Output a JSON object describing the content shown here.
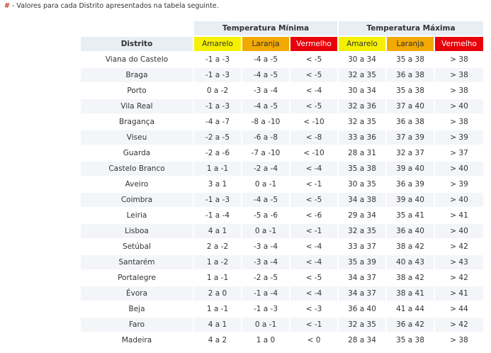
{
  "intro": {
    "marker": "#",
    "text": " - Valores para cada Distrito apresentados na tabela seguinte."
  },
  "table": {
    "groups": {
      "min": "Temperatura Mínima",
      "max": "Temperatura Máxima"
    },
    "distrito_header": "Distrito",
    "levels": [
      "Amarelo",
      "Laranja",
      "Vermelho"
    ],
    "level_colors": {
      "amarelo": "#f4f000",
      "laranja": "#f2a900",
      "vermelho": "#e8000a"
    },
    "rows": [
      {
        "distrito": "Viana do Castelo",
        "min": [
          "-1 a -3",
          "-4 a -5",
          "< -5"
        ],
        "max": [
          "30 a 34",
          "35 a 38",
          "> 38"
        ]
      },
      {
        "distrito": "Braga",
        "min": [
          "-1 a -3",
          "-4 a -5",
          "< -5"
        ],
        "max": [
          "32 a 35",
          "36 a 38",
          "> 38"
        ]
      },
      {
        "distrito": "Porto",
        "min": [
          "0 a -2",
          "-3 a -4",
          "< -4"
        ],
        "max": [
          "30 a 34",
          "35 a 38",
          "> 38"
        ]
      },
      {
        "distrito": "Vila Real",
        "min": [
          "-1 a -3",
          "-4 a -5",
          "< -5"
        ],
        "max": [
          "32 a 36",
          "37 a 40",
          "> 40"
        ]
      },
      {
        "distrito": "Bragança",
        "min": [
          "-4 a -7",
          "-8 a -10",
          "< -10"
        ],
        "max": [
          "32 a 35",
          "36 a 38",
          "> 38"
        ]
      },
      {
        "distrito": "Viseu",
        "min": [
          "-2 a -5",
          "-6 a -8",
          "< -8"
        ],
        "max": [
          "33 a 36",
          "37 a 39",
          "> 39"
        ]
      },
      {
        "distrito": "Guarda",
        "min": [
          "-2 a -6",
          "-7 a -10",
          "< -10"
        ],
        "max": [
          "28 a 31",
          "32 a 37",
          "> 37"
        ]
      },
      {
        "distrito": "Castelo Branco",
        "min": [
          "1 a -1",
          "-2 a -4",
          "< -4"
        ],
        "max": [
          "35 a 38",
          "39 a 40",
          "> 40"
        ]
      },
      {
        "distrito": "Aveiro",
        "min": [
          "3 a 1",
          "0 a -1",
          "< -1"
        ],
        "max": [
          "30 a 35",
          "36 a 39",
          "> 39"
        ]
      },
      {
        "distrito": "Coimbra",
        "min": [
          "-1 a -3",
          "-4 a -5",
          "< -5"
        ],
        "max": [
          "34 a 38",
          "39 a 40",
          "> 40"
        ]
      },
      {
        "distrito": "Leiria",
        "min": [
          "-1 a -4",
          "-5 a -6",
          "< -6"
        ],
        "max": [
          "29 a 34",
          "35 a 41",
          "> 41"
        ]
      },
      {
        "distrito": "Lisboa",
        "min": [
          "4 a 1",
          "0 a -1",
          "< -1"
        ],
        "max": [
          "32 a 35",
          "36 a 40",
          "> 40"
        ]
      },
      {
        "distrito": "Setúbal",
        "min": [
          "2 a -2",
          "-3 a -4",
          "< -4"
        ],
        "max": [
          "33 a 37",
          "38 a 42",
          "> 42"
        ]
      },
      {
        "distrito": "Santarém",
        "min": [
          "1 a -2",
          "-3 a -4",
          "< -4"
        ],
        "max": [
          "35 a 39",
          "40 a 43",
          "> 43"
        ]
      },
      {
        "distrito": "Portalegre",
        "min": [
          "1 a -1",
          "-2 a -5",
          "< -5"
        ],
        "max": [
          "34 a 37",
          "38 a 42",
          "> 42"
        ]
      },
      {
        "distrito": "Évora",
        "min": [
          "2 a 0",
          "-1 a -4",
          "< -4"
        ],
        "max": [
          "34 a 37",
          "38 a 41",
          "> 41"
        ]
      },
      {
        "distrito": "Beja",
        "min": [
          "1 a -1",
          "-1 a -3",
          "< -3"
        ],
        "max": [
          "36 a 40",
          "41 a 44",
          "> 44"
        ]
      },
      {
        "distrito": "Faro",
        "min": [
          "4 a 1",
          "0 a -1",
          "< -1"
        ],
        "max": [
          "32 a 35",
          "36 a 42",
          "> 42"
        ]
      },
      {
        "distrito": "Madeira",
        "min": [
          "4 a 2",
          "1 a 0",
          "< 0"
        ],
        "max": [
          "28 a 34",
          "35 a 38",
          "> 38"
        ]
      }
    ]
  }
}
